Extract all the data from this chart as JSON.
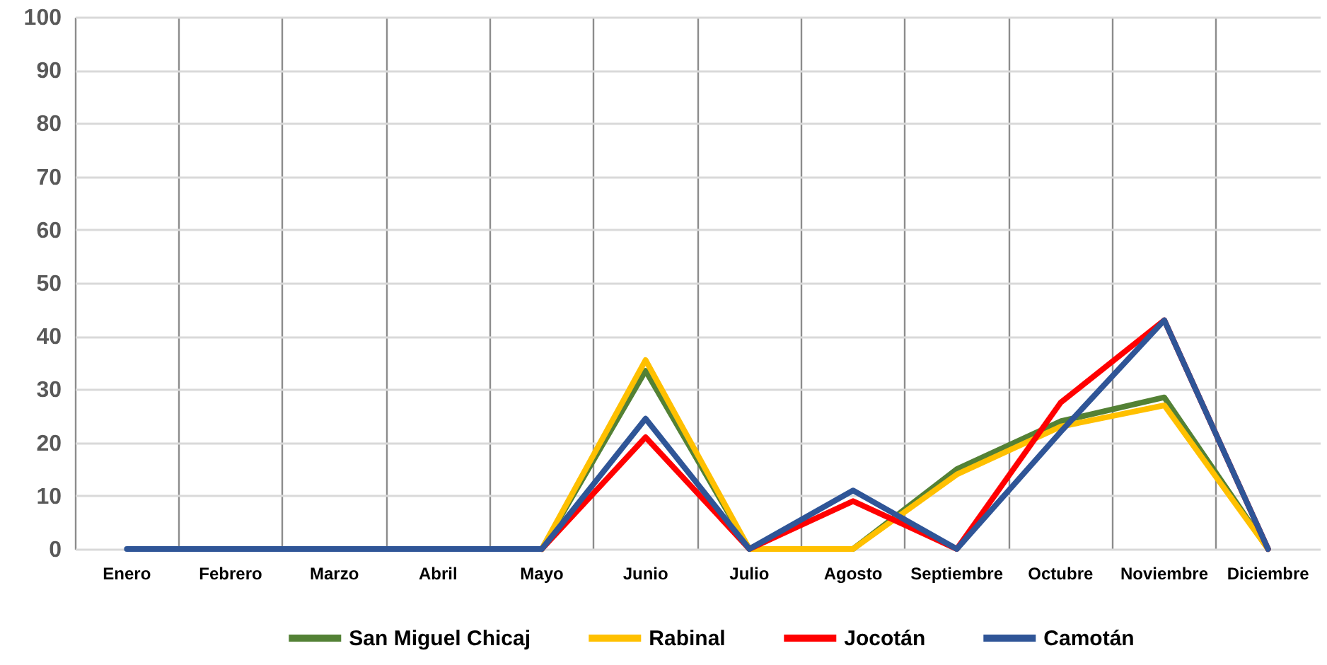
{
  "chart_data": {
    "type": "line",
    "categories": [
      "Enero",
      "Febrero",
      "Marzo",
      "Abril",
      "Mayo",
      "Junio",
      "Julio",
      "Agosto",
      "Septiembre",
      "Octubre",
      "Noviembre",
      "Diciembre"
    ],
    "series": [
      {
        "name": "San Miguel Chicaj",
        "color": "#538135",
        "values": [
          null,
          null,
          null,
          null,
          0,
          33.5,
          0,
          0,
          15,
          24,
          28.5,
          0
        ]
      },
      {
        "name": "Rabinal",
        "color": "#ffc000",
        "values": [
          null,
          null,
          null,
          null,
          0,
          35.5,
          0,
          0,
          14,
          23,
          27,
          0
        ]
      },
      {
        "name": "Jocotán",
        "color": "#ff0000",
        "values": [
          null,
          null,
          null,
          null,
          0,
          21,
          0,
          9,
          0,
          27.5,
          43,
          0
        ]
      },
      {
        "name": "Camotán",
        "color": "#2f5597",
        "values": [
          0,
          0,
          0,
          0,
          0,
          24.5,
          0,
          11,
          0,
          22,
          43,
          0
        ]
      }
    ],
    "ylim": [
      0,
      100
    ],
    "yticks": [
      0,
      10,
      20,
      30,
      40,
      50,
      60,
      70,
      80,
      90,
      100
    ],
    "grid": true,
    "legend": "bottom"
  }
}
